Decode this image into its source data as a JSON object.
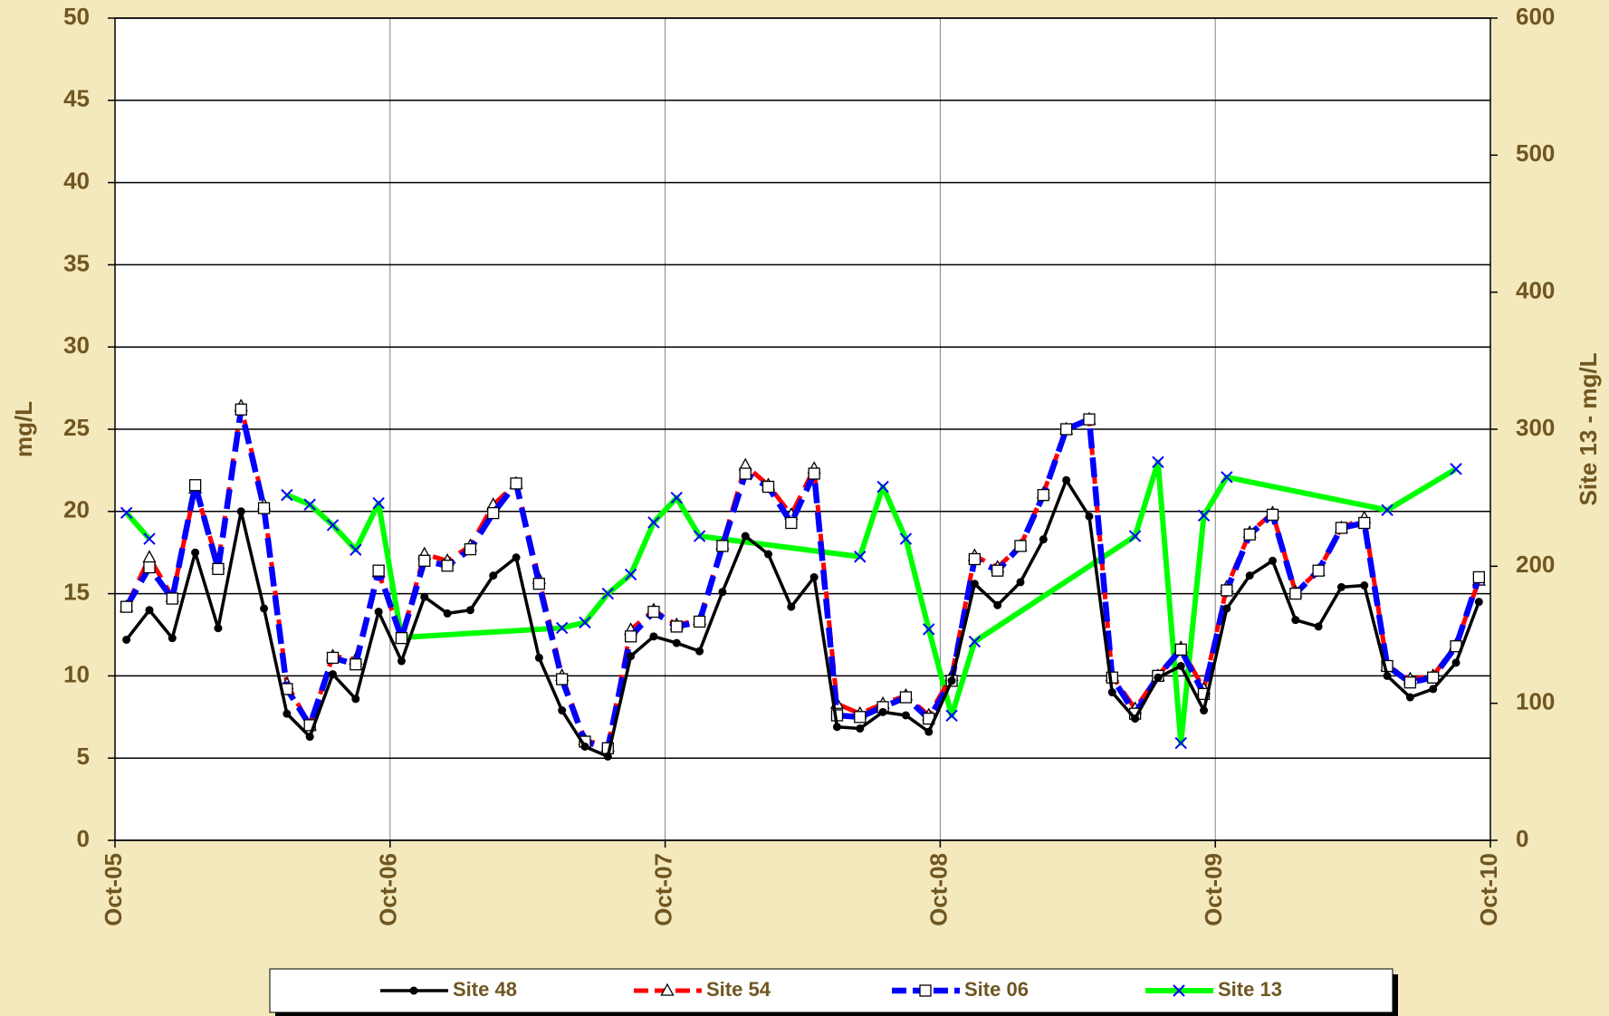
{
  "chart_data": {
    "type": "line",
    "y_label": "mg/L",
    "y2_label": "Site 13 - mg/L",
    "xlim": [
      "Oct-05",
      "Oct-10"
    ],
    "xticks": [
      "Oct-05",
      "Oct-06",
      "Oct-07",
      "Oct-08",
      "Oct-09",
      "Oct-10"
    ],
    "ylim": [
      0,
      50
    ],
    "yticks": [
      0,
      5,
      10,
      15,
      20,
      25,
      30,
      35,
      40,
      45,
      50
    ],
    "y2lim": [
      0,
      600
    ],
    "y2ticks": [
      0,
      100,
      200,
      300,
      400,
      500,
      600
    ],
    "grid": true,
    "legend": "bottom",
    "x": [
      "Oct-05",
      "Nov-05",
      "Dec-05",
      "Jan-06",
      "Feb-06",
      "Mar-06",
      "Apr-06",
      "May-06",
      "Jun-06",
      "Jul-06",
      "Aug-06",
      "Sep-06",
      "Oct-06",
      "Nov-06",
      "Dec-06",
      "Jan-07",
      "Feb-07",
      "Mar-07",
      "Apr-07",
      "May-07",
      "Jun-07",
      "Jul-07",
      "Aug-07",
      "Sep-07",
      "Oct-07",
      "Nov-07",
      "Dec-07",
      "Jan-08",
      "Feb-08",
      "Mar-08",
      "Apr-08",
      "May-08",
      "Jun-08",
      "Jul-08",
      "Aug-08",
      "Sep-08",
      "Oct-08",
      "Nov-08",
      "Dec-08",
      "Jan-09",
      "Feb-09",
      "Mar-09",
      "Apr-09",
      "May-09",
      "Jun-09",
      "Jul-09",
      "Aug-09",
      "Sep-09",
      "Oct-09",
      "Nov-09",
      "Dec-09",
      "Jan-10",
      "Feb-10",
      "Mar-10",
      "Apr-10",
      "May-10",
      "Jun-10",
      "Jul-10",
      "Aug-10",
      "Sep-10"
    ],
    "series": [
      {
        "name": "Site 48",
        "color": "#000000",
        "marker": "circle",
        "dash": false,
        "values": [
          12.2,
          14.0,
          12.3,
          17.5,
          12.9,
          20.0,
          14.1,
          7.7,
          6.3,
          10.1,
          8.6,
          13.9,
          10.9,
          14.8,
          13.8,
          14.0,
          16.1,
          17.2,
          11.1,
          7.9,
          5.7,
          5.1,
          11.2,
          12.4,
          12.0,
          11.5,
          15.1,
          18.5,
          17.4,
          14.2,
          16.0,
          6.9,
          6.8,
          7.8,
          7.6,
          6.6,
          9.7,
          15.6,
          14.3,
          15.7,
          18.3,
          21.9,
          19.7,
          9.0,
          7.4,
          9.9,
          10.6,
          7.9,
          14.1,
          16.1,
          17.0,
          13.4,
          13.0,
          15.4,
          15.5,
          10.0,
          8.7,
          9.2,
          10.8,
          14.5
        ]
      },
      {
        "name": "Site 54",
        "color": "#ff0000",
        "marker": "triangle",
        "dash": true,
        "values": [
          14.2,
          17.2,
          14.8,
          21.4,
          16.8,
          26.4,
          20.4,
          9.5,
          7.0,
          11.2,
          11.0,
          16.3,
          12.3,
          17.4,
          17.0,
          17.9,
          20.4,
          21.7,
          15.9,
          10.0,
          6.1,
          5.7,
          12.8,
          14.0,
          13.1,
          13.4,
          18.0,
          22.8,
          21.6,
          19.8,
          22.6,
          8.3,
          7.7,
          8.3,
          8.8,
          7.6,
          10.0,
          17.3,
          16.6,
          17.9,
          21.1,
          25.0,
          25.6,
          10.0,
          8.0,
          10.0,
          11.7,
          9.2,
          15.4,
          18.7,
          19.9,
          15.1,
          16.4,
          19.0,
          19.6,
          10.6,
          9.8,
          10.0,
          11.9,
          15.8
        ]
      },
      {
        "name": "Site 06",
        "color": "#0000ff",
        "marker": "square",
        "dash": true,
        "values": [
          14.2,
          16.6,
          14.7,
          21.6,
          16.5,
          26.2,
          20.2,
          9.2,
          7.0,
          11.1,
          10.7,
          16.4,
          12.3,
          17.0,
          16.7,
          17.7,
          19.9,
          21.7,
          15.6,
          9.8,
          6.0,
          5.6,
          12.4,
          13.9,
          13.0,
          13.3,
          17.9,
          22.3,
          21.5,
          19.3,
          22.3,
          7.6,
          7.5,
          8.1,
          8.7,
          7.4,
          9.7,
          17.1,
          16.4,
          17.9,
          21.0,
          25.0,
          25.6,
          9.9,
          7.7,
          10.0,
          11.6,
          8.9,
          15.2,
          18.6,
          19.8,
          15.0,
          16.4,
          19.0,
          19.3,
          10.6,
          9.6,
          9.9,
          11.8,
          16.0
        ]
      },
      {
        "name": "Site 13",
        "color": "#00ff00",
        "marker": "x",
        "dash": false,
        "axis": "y2",
        "x": [
          "Oct-05",
          "Nov-05",
          null,
          "May-06",
          "Jun-06",
          "Jul-06",
          "Aug-06",
          "Sep-06",
          "Oct-06",
          "May-07",
          "Jun-07",
          "Jul-07",
          "Aug-07",
          "Sep-07",
          "Oct-07",
          "Nov-07",
          "Jun-08",
          "Jul-08",
          "Aug-08",
          "Sep-08",
          "Oct-08",
          "Nov-08",
          "Jun-09",
          "Jul-09",
          "Aug-09",
          "Sep-09",
          "Oct-09",
          "May-10",
          "Aug-10"
        ],
        "values": [
          239,
          220,
          null,
          252,
          245,
          230,
          212,
          246,
          148,
          155,
          159,
          180,
          194,
          232,
          250,
          222,
          207,
          258,
          220,
          154,
          91,
          145,
          222,
          276,
          71,
          237,
          265,
          241,
          271
        ]
      }
    ]
  }
}
